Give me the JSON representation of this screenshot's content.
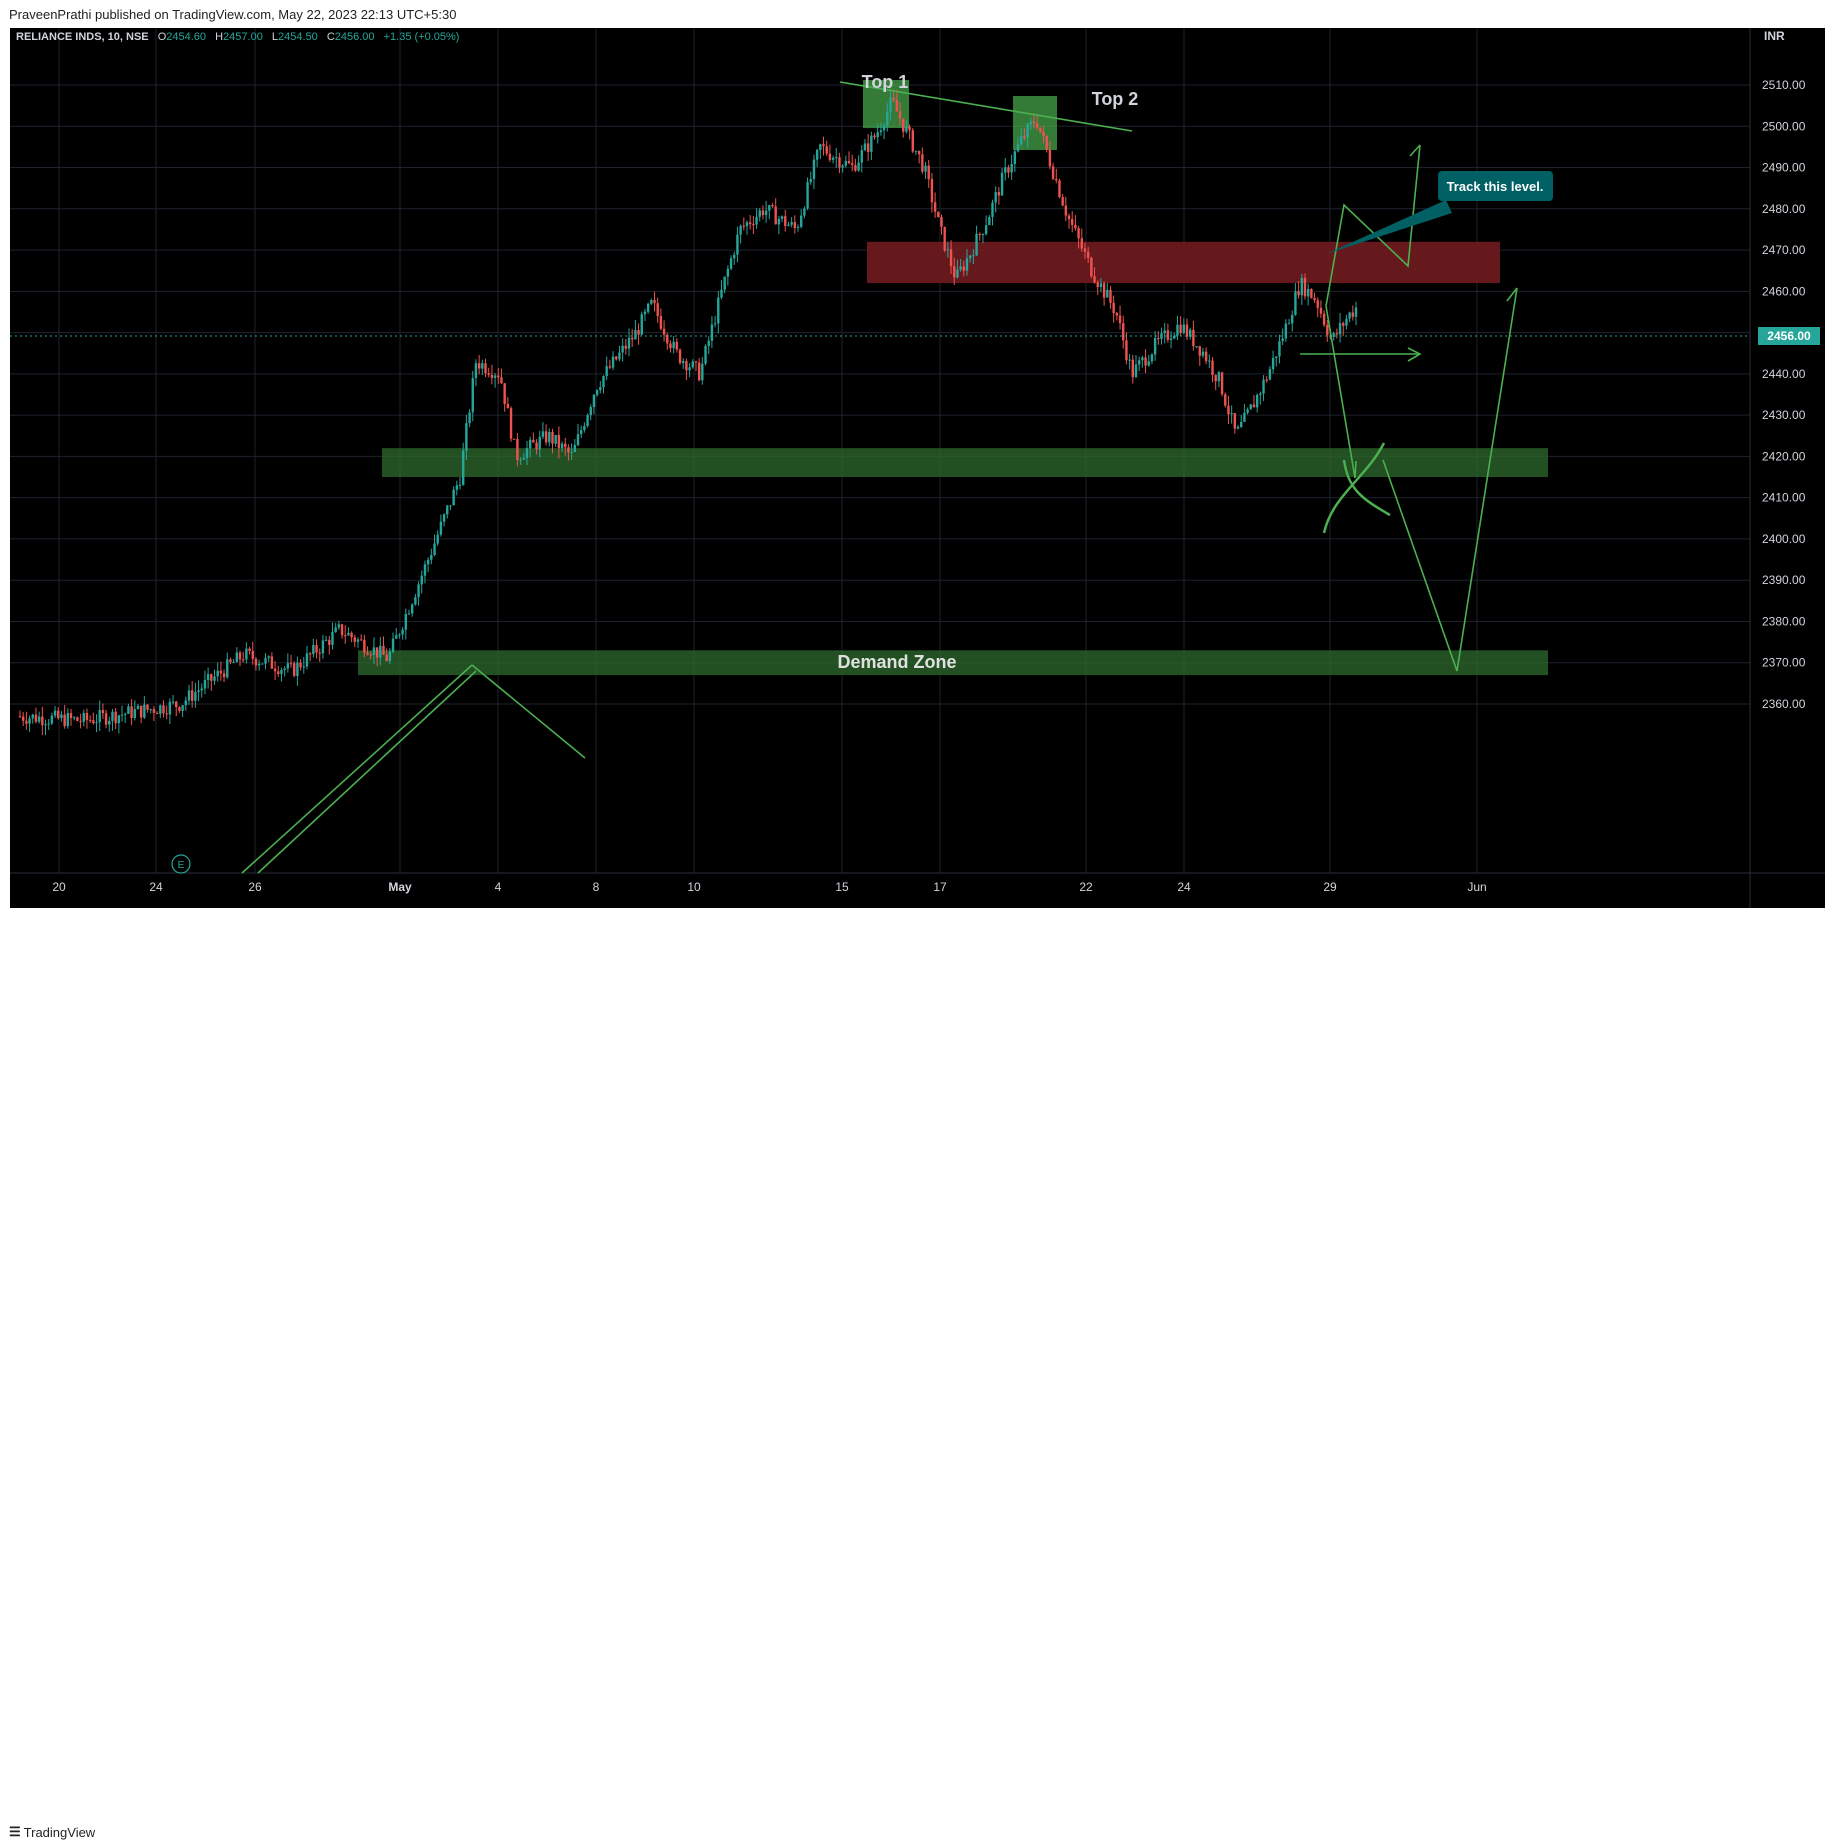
{
  "header": {
    "published": "PraveenPrathi published on TradingView.com, May 22, 2023 22:13 UTC+5:30"
  },
  "symbol": {
    "name": "RELIANCE INDS, 10, NSE",
    "o_label": "O",
    "o": "2454.60",
    "h_label": "H",
    "h": "2457.00",
    "l_label": "L",
    "l": "2454.50",
    "c_label": "C",
    "c": "2456.00",
    "change": "+1.35 (+0.05%)"
  },
  "currency": "INR",
  "last_price": "2456.00",
  "footer": {
    "logo_text": "TradingView"
  },
  "colors": {
    "background": "#000000",
    "up": "#26a69a",
    "down": "#ef5350",
    "drawing": "#4caf50",
    "supply_zone": "#6b1a1f",
    "demand_zone": "#2e6b2e",
    "callout": "#006064",
    "price_tag": "#26a69a"
  },
  "chart_data": {
    "type": "candlestick",
    "timeframe": "10",
    "ylim": [
      2351,
      2520
    ],
    "y_ticks": [
      2360,
      2370,
      2380,
      2390,
      2400,
      2410,
      2420,
      2430,
      2440,
      2450,
      2460,
      2470,
      2480,
      2490,
      2500,
      2510
    ],
    "x_tick_labels": [
      "20",
      "24",
      "26",
      "May",
      "4",
      "8",
      "10",
      "15",
      "17",
      "22",
      "24",
      "29",
      "Jun"
    ],
    "price_path": [
      {
        "t": 0.0,
        "p": 2357
      },
      {
        "t": 0.04,
        "p": 2356
      },
      {
        "t": 0.1,
        "p": 2360
      },
      {
        "t": 0.14,
        "p": 2372
      },
      {
        "t": 0.17,
        "p": 2368
      },
      {
        "t": 0.2,
        "p": 2378
      },
      {
        "t": 0.23,
        "p": 2371
      },
      {
        "t": 0.255,
        "p": 2395
      },
      {
        "t": 0.275,
        "p": 2415
      },
      {
        "t": 0.285,
        "p": 2443
      },
      {
        "t": 0.3,
        "p": 2440
      },
      {
        "t": 0.31,
        "p": 2420
      },
      {
        "t": 0.33,
        "p": 2425
      },
      {
        "t": 0.345,
        "p": 2420
      },
      {
        "t": 0.36,
        "p": 2437
      },
      {
        "t": 0.385,
        "p": 2450
      },
      {
        "t": 0.395,
        "p": 2457
      },
      {
        "t": 0.41,
        "p": 2445
      },
      {
        "t": 0.425,
        "p": 2440
      },
      {
        "t": 0.44,
        "p": 2462
      },
      {
        "t": 0.45,
        "p": 2475
      },
      {
        "t": 0.465,
        "p": 2480
      },
      {
        "t": 0.485,
        "p": 2475
      },
      {
        "t": 0.5,
        "p": 2495
      },
      {
        "t": 0.52,
        "p": 2490
      },
      {
        "t": 0.535,
        "p": 2498
      },
      {
        "t": 0.545,
        "p": 2506
      },
      {
        "t": 0.555,
        "p": 2498
      },
      {
        "t": 0.565,
        "p": 2490
      },
      {
        "t": 0.575,
        "p": 2475
      },
      {
        "t": 0.585,
        "p": 2463
      },
      {
        "t": 0.595,
        "p": 2470
      },
      {
        "t": 0.605,
        "p": 2478
      },
      {
        "t": 0.615,
        "p": 2488
      },
      {
        "t": 0.625,
        "p": 2496
      },
      {
        "t": 0.635,
        "p": 2502
      },
      {
        "t": 0.645,
        "p": 2490
      },
      {
        "t": 0.655,
        "p": 2478
      },
      {
        "t": 0.67,
        "p": 2465
      },
      {
        "t": 0.685,
        "p": 2455
      },
      {
        "t": 0.695,
        "p": 2440
      },
      {
        "t": 0.71,
        "p": 2447
      },
      {
        "t": 0.725,
        "p": 2452
      },
      {
        "t": 0.74,
        "p": 2445
      },
      {
        "t": 0.75,
        "p": 2438
      },
      {
        "t": 0.76,
        "p": 2425
      },
      {
        "t": 0.77,
        "p": 2432
      },
      {
        "t": 0.78,
        "p": 2440
      },
      {
        "t": 0.79,
        "p": 2450
      },
      {
        "t": 0.8,
        "p": 2462
      },
      {
        "t": 0.81,
        "p": 2458
      },
      {
        "t": 0.82,
        "p": 2448
      },
      {
        "t": 0.83,
        "p": 2454
      },
      {
        "t": 0.835,
        "p": 2456
      }
    ],
    "zones": [
      {
        "kind": "supply",
        "top": 2472,
        "bottom": 2462
      },
      {
        "kind": "demand",
        "top": 2422,
        "bottom": 2415
      },
      {
        "kind": "demand",
        "top": 2373,
        "bottom": 2367,
        "label": "Demand Zone"
      }
    ],
    "annotations": {
      "top1": "Top 1",
      "top2": "Top 2",
      "callout": "Track this level."
    }
  }
}
